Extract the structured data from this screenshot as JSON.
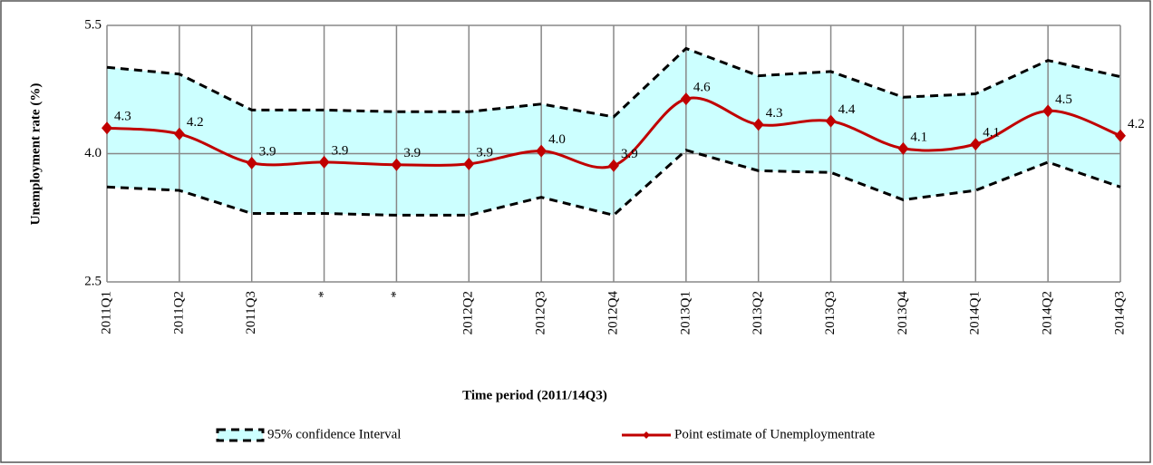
{
  "chart_data": {
    "type": "line",
    "title_x": "Time period (2011/14Q3)",
    "title_y": "Unemployment rate (%)",
    "categories": [
      "2011Q1",
      "2011Q2",
      "2011Q3",
      "*",
      "*",
      "2012Q2",
      "2012Q3",
      "2012Q4",
      "2013Q1",
      "2013Q2",
      "2013Q3",
      "2013Q4",
      "2014Q1",
      "2014Q2",
      "2014Q3"
    ],
    "band": {
      "name": "95% confidence Interval",
      "color": "#ccffff",
      "line_color": "#000000",
      "upper": [
        5.01,
        4.93,
        4.51,
        4.51,
        4.49,
        4.49,
        4.58,
        4.43,
        5.23,
        4.91,
        4.96,
        4.66,
        4.7,
        5.09,
        4.9
      ],
      "lower": [
        3.61,
        3.57,
        3.3,
        3.3,
        3.28,
        3.28,
        3.49,
        3.28,
        4.04,
        3.8,
        3.78,
        3.46,
        3.57,
        3.9,
        3.61
      ]
    },
    "series": [
      {
        "name": "Point estimate of Unemploymentrate",
        "color": "#c00000",
        "values": [
          4.3,
          4.23,
          3.89,
          3.9,
          3.87,
          3.88,
          4.03,
          3.86,
          4.64,
          4.34,
          4.38,
          4.06,
          4.11,
          4.5,
          4.21
        ],
        "value_labels": [
          "4.3",
          "4.2",
          "3.9",
          "3.9",
          "3.9",
          "3.9",
          "4.0",
          "3.9",
          "4.6",
          "4.3",
          "4.4",
          "4.1",
          "4.1",
          "4.5",
          "4.2"
        ]
      }
    ],
    "ylim": [
      2.5,
      5.5
    ],
    "yticks": [
      2.5,
      {
        "value": 4,
        "label": "4.0"
      },
      5.5
    ],
    "grid": true
  }
}
